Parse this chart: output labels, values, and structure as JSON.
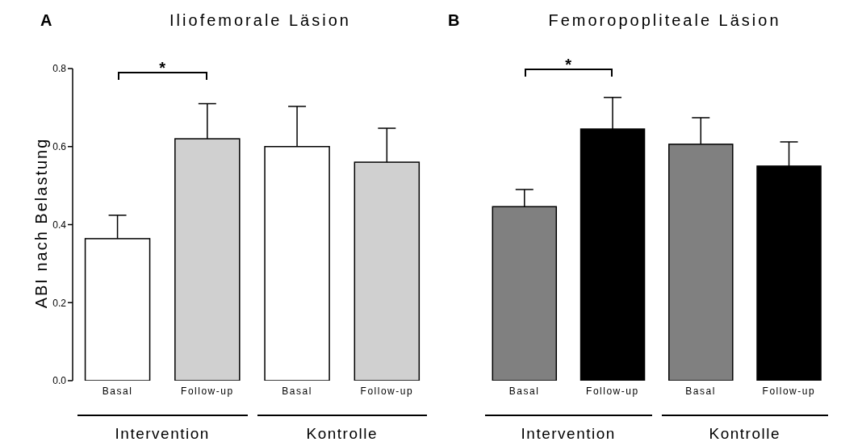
{
  "chart_data": [
    {
      "type": "bar",
      "title": "Iliofemorale Läsion",
      "ylabel": "ABI nach Belastung",
      "categories": [
        "Basal",
        "Follow-up",
        "Basal",
        "Follow-up"
      ],
      "values": [
        0.364,
        0.62,
        0.6,
        0.56
      ],
      "colors": [
        "#ffffff",
        "#d0d0d0",
        "#ffffff",
        "#d0d0d0"
      ],
      "errors": [
        [
          0.364,
          0.424
        ],
        [
          0.62,
          0.71
        ],
        [
          0.6,
          0.703
        ],
        [
          0.56,
          0.647
        ]
      ],
      "ylim": [
        0,
        0.8
      ],
      "yticks": [
        {
          "value": 0,
          "label": "0.0"
        },
        0.2,
        0.4,
        0.6,
        0.8
      ],
      "grid": false,
      "annotations": [
        "A",
        "*",
        "Intervention",
        "Kontrolle"
      ]
    },
    {
      "type": "bar",
      "title": "Femoropopliteale Läsion",
      "categories": [
        "Basal",
        "Follow-up",
        "Basal",
        "Follow-up"
      ],
      "values": [
        0.446,
        0.645,
        0.606,
        0.55
      ],
      "colors": [
        "#808080",
        "#000000",
        "#808080",
        "#000000"
      ],
      "errors": [
        [
          0.446,
          0.49
        ],
        [
          0.645,
          0.726
        ],
        [
          0.606,
          0.674
        ],
        [
          0.55,
          0.612
        ]
      ],
      "ylim": [
        0,
        0.8
      ],
      "tick_labels": "x",
      "grid": false,
      "annotations": [
        "B",
        "*",
        "Intervention",
        "Kontrolle"
      ]
    }
  ]
}
